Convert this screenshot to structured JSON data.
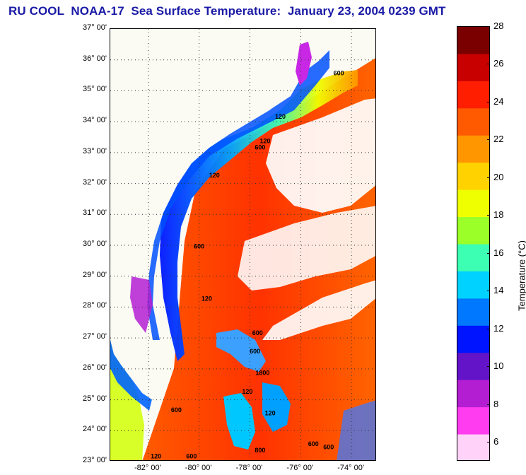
{
  "title": "RU COOL  NOAA-17  Sea Surface Temperature:  January 23, 2004 0239 GMT",
  "map": {
    "lat_ticks": [
      "37° 00'",
      "36° 00'",
      "35° 00'",
      "34° 00'",
      "33° 00'",
      "32° 00'",
      "31° 00'",
      "30° 00'",
      "29° 00'",
      "28° 00'",
      "27° 00'",
      "26° 00'",
      "25° 00'",
      "24° 00'",
      "23° 00'"
    ],
    "lon_ticks": [
      "-82° 00'",
      "-80° 00'",
      "-78° 00'",
      "-76° 00'",
      "-74° 00'"
    ],
    "contour_labels": [
      {
        "text": "600",
        "lon": -74.5,
        "lat": 35.5
      },
      {
        "text": "120",
        "lon": -76.8,
        "lat": 34.1
      },
      {
        "text": "120",
        "lon": -77.4,
        "lat": 33.3
      },
      {
        "text": "600",
        "lon": -77.6,
        "lat": 33.1
      },
      {
        "text": "120",
        "lon": -79.4,
        "lat": 32.2
      },
      {
        "text": "600",
        "lon": -80.0,
        "lat": 29.9
      },
      {
        "text": "120",
        "lon": -79.7,
        "lat": 28.2
      },
      {
        "text": "600",
        "lon": -77.7,
        "lat": 27.1
      },
      {
        "text": "600",
        "lon": -77.8,
        "lat": 26.5
      },
      {
        "text": "1800",
        "lon": -77.5,
        "lat": 25.8
      },
      {
        "text": "120",
        "lon": -78.1,
        "lat": 25.2
      },
      {
        "text": "120",
        "lon": -77.2,
        "lat": 24.5
      },
      {
        "text": "600",
        "lon": -80.9,
        "lat": 24.6
      },
      {
        "text": "600",
        "lon": -75.5,
        "lat": 23.5
      },
      {
        "text": "600",
        "lon": -74.9,
        "lat": 23.4
      },
      {
        "text": "800",
        "lon": -77.6,
        "lat": 23.3
      },
      {
        "text": "120",
        "lon": -81.7,
        "lat": 23.1
      },
      {
        "text": "600",
        "lon": -80.3,
        "lat": 23.1
      }
    ]
  },
  "colorbar": {
    "label": "Temperature (°C)",
    "min": 5,
    "max": 28,
    "ticks": [
      "28",
      "26",
      "24",
      "22",
      "20",
      "18",
      "16",
      "14",
      "12",
      "10",
      "8",
      "6"
    ],
    "palette": [
      "#7a0000",
      "#c80000",
      "#ff1e00",
      "#ff5a00",
      "#ff9600",
      "#ffd200",
      "#f0ff00",
      "#9bff28",
      "#3cffb4",
      "#00d2ff",
      "#0078ff",
      "#0014ff",
      "#6414c8",
      "#b41ed2",
      "#ff3cf0",
      "#ffd2fa"
    ],
    "land_color": "#fbfbf4",
    "cloud_color": "#ffffff"
  },
  "chart_data": {
    "type": "heatmap",
    "title": "RU COOL  NOAA-17  Sea Surface Temperature:  January 23, 2004 0239 GMT",
    "xlim": [
      -83.5,
      -73.0
    ],
    "ylim": [
      23.0,
      37.0
    ],
    "zlim": [
      5,
      28
    ],
    "zlabel": "Temperature (°C)",
    "x": [
      "-82° 00'",
      "-80° 00'",
      "-78° 00'",
      "-76° 00'",
      "-74° 00'"
    ],
    "y": [
      "37° 00'",
      "36° 00'",
      "35° 00'",
      "34° 00'",
      "33° 00'",
      "32° 00'",
      "31° 00'",
      "30° 00'",
      "29° 00'",
      "28° 00'",
      "27° 00'",
      "26° 00'",
      "25° 00'",
      "24° 00'",
      "23° 00'"
    ],
    "grid": true,
    "legend": "right (colorbar)"
  }
}
